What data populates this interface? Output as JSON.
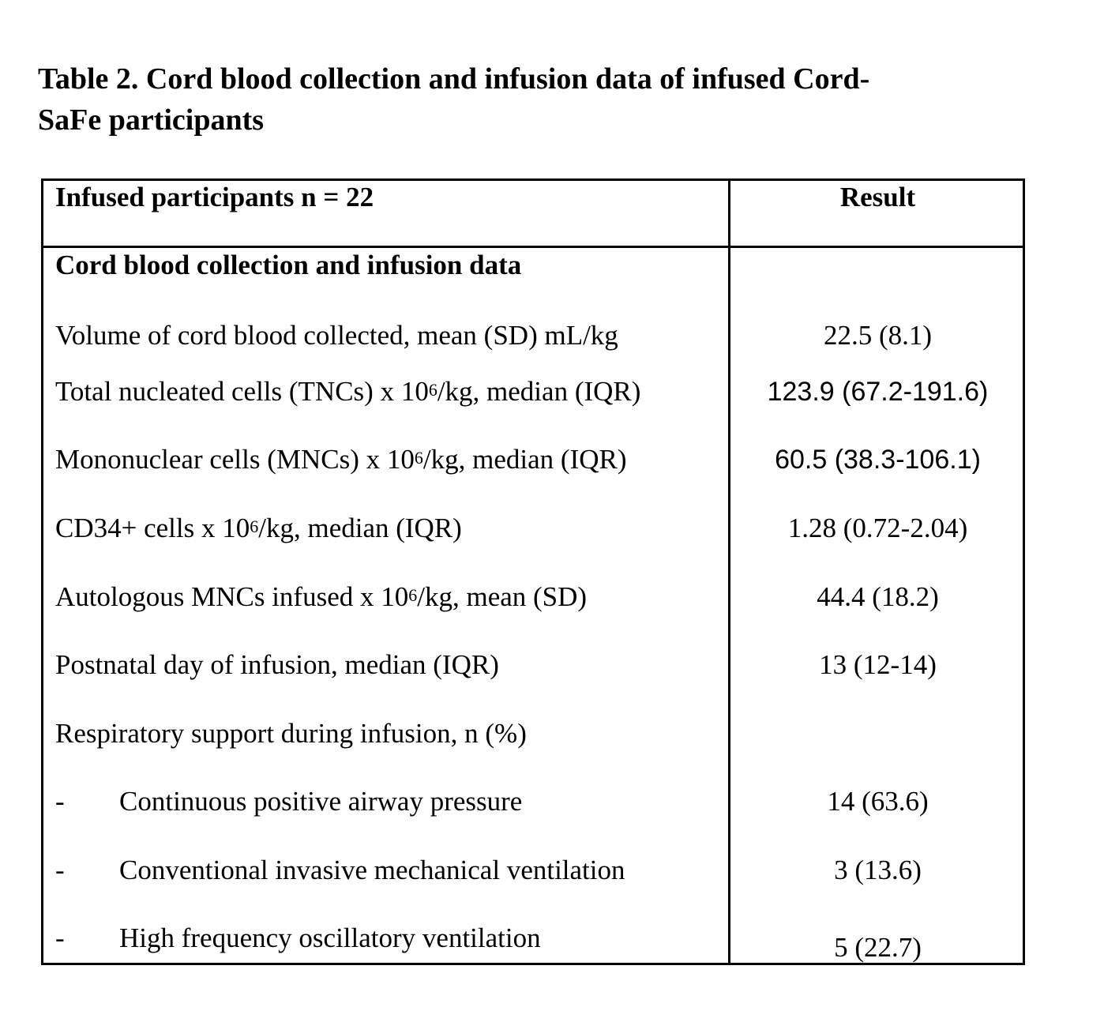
{
  "title": {
    "line1": "Table 2. Cord blood collection and infusion data of infused Cord-",
    "line2": "SaFe participants"
  },
  "header": {
    "left": "Infused participants n = 22",
    "right": "Result"
  },
  "section_heading": "Cord blood collection and infusion data",
  "rows": [
    {
      "label": "Volume of cord blood collected, mean (SD) mL/kg",
      "value": "22.5 (8.1)"
    },
    {
      "label_pre": "Total nucleated cells (TNCs) x 10",
      "label_sup": "6",
      "label_post": "/kg, median (IQR)",
      "value": "123.9 (67.2-191.6)"
    },
    {
      "label_pre": "Mononuclear cells (MNCs) x 10",
      "label_sup": "6",
      "label_post": "/kg, median (IQR)",
      "value": "60.5 (38.3-106.1)"
    },
    {
      "label_pre": "CD34+ cells x 10",
      "label_sup": "6",
      "label_post": "/kg, median (IQR)",
      "value": "1.28 (0.72-2.04)"
    },
    {
      "label_pre": "Autologous MNCs infused x 10",
      "label_sup": "6",
      "label_post": "/kg, mean (SD)",
      "value": "44.4 (18.2)"
    },
    {
      "label": "Postnatal day of infusion, median (IQR)",
      "value": "13 (12-14)"
    },
    {
      "label": "Respiratory support during infusion, n (%)",
      "value": ""
    }
  ],
  "sub_rows": [
    {
      "dash": "-",
      "label": "Continuous positive airway pressure",
      "value": "14 (63.6)"
    },
    {
      "dash": "-",
      "label": "Conventional invasive mechanical ventilation",
      "value": "3 (13.6)"
    },
    {
      "dash": "-",
      "label": "High frequency oscillatory ventilation",
      "value": "5 (22.7)"
    }
  ]
}
